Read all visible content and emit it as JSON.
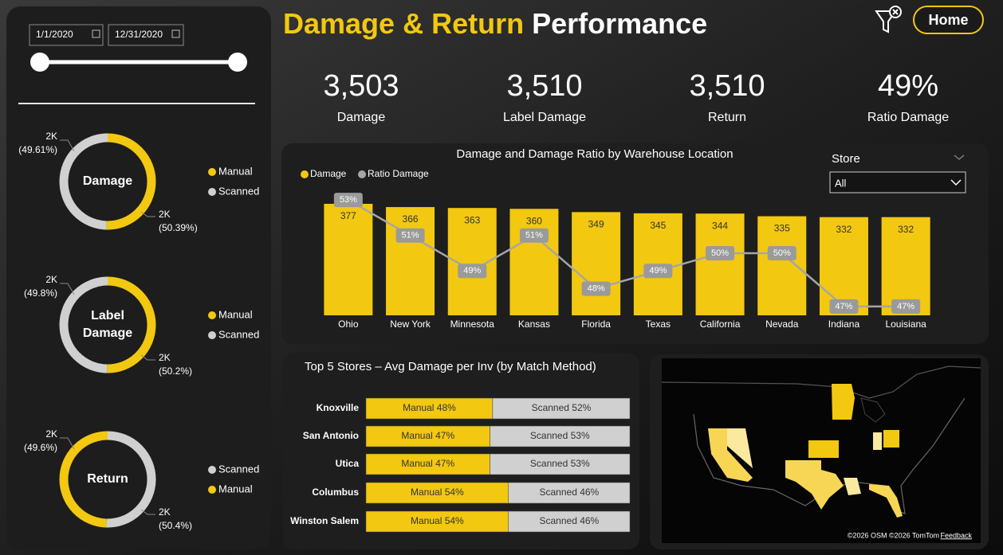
{
  "header": {
    "title_highlight": "Damage & Return",
    "title_rest": "Performance",
    "home_button": "Home"
  },
  "date_range": {
    "start": "1/1/2020",
    "end": "12/31/2020"
  },
  "kpis": [
    {
      "value": "3,503",
      "label": "Damage"
    },
    {
      "value": "3,510",
      "label": "Label Damage"
    },
    {
      "value": "3,510",
      "label": "Return"
    },
    {
      "value": "49%",
      "label": "Ratio Damage"
    }
  ],
  "store_filter": {
    "label": "Store",
    "selected": "All"
  },
  "map": {
    "attribution": "©2026 OSM ©2026 TomTom",
    "feedback": "Feedback"
  },
  "chart_data": [
    {
      "type": "donut",
      "center_label": "Damage",
      "categories": [
        "Manual",
        "Scanned"
      ],
      "colors": [
        "#f2c811",
        "#d0d0d0"
      ],
      "values": [
        50.39,
        49.61
      ],
      "value_labels": [
        "(50.39%)",
        "(49.61%)"
      ],
      "count_labels": [
        "2K",
        "2K"
      ]
    },
    {
      "type": "donut",
      "center_label": "Label Damage",
      "categories": [
        "Manual",
        "Scanned"
      ],
      "colors": [
        "#f2c811",
        "#d0d0d0"
      ],
      "values": [
        50.2,
        49.8
      ],
      "value_labels": [
        "(50.2%)",
        "(49.8%)"
      ],
      "count_labels": [
        "2K",
        "2K"
      ]
    },
    {
      "type": "donut",
      "center_label": "Return",
      "categories": [
        "Scanned",
        "Manual"
      ],
      "colors": [
        "#d0d0d0",
        "#f2c811"
      ],
      "values": [
        50.4,
        49.6
      ],
      "value_labels": [
        "(50.4%)",
        "(49.6%)"
      ],
      "count_labels": [
        "2K",
        "2K"
      ]
    },
    {
      "type": "bar",
      "title": "Damage and Damage Ratio by Warehouse Location",
      "categories": [
        "Ohio",
        "New York",
        "Minnesota",
        "Kansas",
        "Florida",
        "Texas",
        "California",
        "Nevada",
        "Indiana",
        "Louisiana"
      ],
      "series": [
        {
          "name": "Damage",
          "color": "#f2c811",
          "values": [
            377,
            366,
            363,
            360,
            349,
            345,
            344,
            335,
            332,
            332
          ]
        },
        {
          "name": "Ratio Damage",
          "color": "#a6a6a6",
          "type": "line",
          "axis": "y2",
          "values": [
            53,
            51,
            49,
            51,
            48,
            49,
            50,
            50,
            47,
            47
          ],
          "value_labels": [
            "53%",
            "51%",
            "49%",
            "51%",
            "48%",
            "49%",
            "50%",
            "50%",
            "47%",
            "47%"
          ]
        }
      ],
      "ylim": [
        0,
        420
      ],
      "y2lim": [
        46.5,
        53.5
      ]
    },
    {
      "type": "stacked_bar",
      "title": "Top 5 Stores – Avg Damage per Inv (by Match Method)",
      "categories": [
        "Knoxville",
        "San Antonio",
        "Utica",
        "Columbus",
        "Winston Salem"
      ],
      "series": [
        {
          "color": "#f2c811",
          "values": [
            48,
            47,
            47,
            54,
            54
          ],
          "value_labels": [
            "Manual 48%",
            "Manual 47%",
            "Manual 47%",
            "Manual 54%",
            "Manual 54%"
          ]
        },
        {
          "color": "#d0d0d0",
          "values": [
            52,
            53,
            53,
            46,
            46
          ],
          "value_labels": [
            "Scanned 52%",
            "Scanned 53%",
            "Scanned 53%",
            "Scanned 46%",
            "Scanned 46%"
          ]
        }
      ],
      "xlim": [
        0,
        100
      ]
    }
  ]
}
